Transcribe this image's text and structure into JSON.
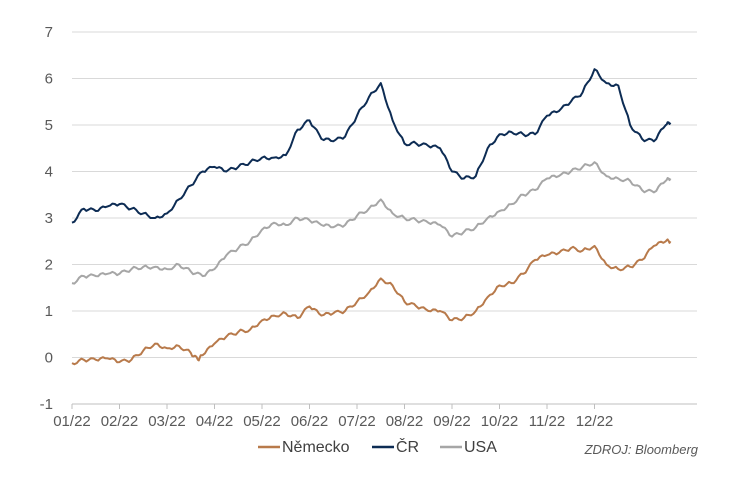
{
  "chart_data": {
    "type": "line",
    "title": "",
    "xlabel": "",
    "ylabel": "",
    "x_ticks": [
      "01/22",
      "02/22",
      "03/22",
      "04/22",
      "05/22",
      "06/22",
      "07/22",
      "08/22",
      "09/22",
      "10/22",
      "11/22",
      "12/22"
    ],
    "y_ticks": [
      -1,
      0,
      1,
      2,
      3,
      4,
      5,
      6,
      7
    ],
    "ylim": [
      -1,
      7
    ],
    "x_range_months": [
      0,
      12
    ],
    "grid": "horizontal",
    "legend_position": "bottom",
    "source": "ZDROJ: Bloomberg",
    "series": [
      {
        "name": "Německo",
        "color": "#b87a4b",
        "points": [
          [
            0,
            -0.12
          ],
          [
            0.25,
            -0.05
          ],
          [
            0.5,
            -0.05
          ],
          [
            0.75,
            -0.02
          ],
          [
            1,
            -0.1
          ],
          [
            1.25,
            -0.05
          ],
          [
            1.5,
            0.15
          ],
          [
            1.75,
            0.3
          ],
          [
            2,
            0.2
          ],
          [
            2.25,
            0.25
          ],
          [
            2.5,
            0.1
          ],
          [
            2.65,
            -0.05
          ],
          [
            2.75,
            0.05
          ],
          [
            3,
            0.3
          ],
          [
            3.25,
            0.45
          ],
          [
            3.5,
            0.55
          ],
          [
            3.75,
            0.6
          ],
          [
            4,
            0.8
          ],
          [
            4.25,
            0.9
          ],
          [
            4.5,
            0.95
          ],
          [
            4.75,
            0.85
          ],
          [
            5,
            1.1
          ],
          [
            5.25,
            0.9
          ],
          [
            5.5,
            0.95
          ],
          [
            5.75,
            1.0
          ],
          [
            6,
            1.2
          ],
          [
            6.25,
            1.4
          ],
          [
            6.5,
            1.7
          ],
          [
            6.75,
            1.55
          ],
          [
            7,
            1.2
          ],
          [
            7.25,
            1.1
          ],
          [
            7.5,
            1.0
          ],
          [
            7.75,
            1.0
          ],
          [
            8,
            0.8
          ],
          [
            8.25,
            0.85
          ],
          [
            8.5,
            1.0
          ],
          [
            8.75,
            1.3
          ],
          [
            9,
            1.55
          ],
          [
            9.25,
            1.6
          ],
          [
            9.5,
            1.8
          ],
          [
            9.75,
            2.1
          ],
          [
            10,
            2.2
          ],
          [
            10.25,
            2.25
          ],
          [
            10.5,
            2.35
          ],
          [
            10.75,
            2.3
          ],
          [
            11,
            2.4
          ],
          [
            11.25,
            2.0
          ],
          [
            11.5,
            1.9
          ],
          [
            11.75,
            1.95
          ],
          [
            12,
            2.1
          ],
          [
            12.25,
            2.4
          ],
          [
            12.5,
            2.5
          ],
          [
            12.6,
            2.5
          ]
        ]
      },
      {
        "name": "ČR",
        "color": "#0d2c54",
        "points": [
          [
            0,
            2.9
          ],
          [
            0.25,
            3.2
          ],
          [
            0.5,
            3.15
          ],
          [
            0.75,
            3.25
          ],
          [
            1,
            3.3
          ],
          [
            1.25,
            3.2
          ],
          [
            1.5,
            3.1
          ],
          [
            1.75,
            3.0
          ],
          [
            2,
            3.1
          ],
          [
            2.25,
            3.4
          ],
          [
            2.5,
            3.7
          ],
          [
            2.75,
            4.0
          ],
          [
            3,
            4.1
          ],
          [
            3.25,
            4.0
          ],
          [
            3.5,
            4.1
          ],
          [
            3.75,
            4.2
          ],
          [
            4,
            4.3
          ],
          [
            4.25,
            4.3
          ],
          [
            4.5,
            4.35
          ],
          [
            4.75,
            4.9
          ],
          [
            5,
            5.1
          ],
          [
            5.25,
            4.7
          ],
          [
            5.5,
            4.65
          ],
          [
            5.75,
            4.75
          ],
          [
            6,
            5.2
          ],
          [
            6.25,
            5.6
          ],
          [
            6.5,
            5.9
          ],
          [
            6.75,
            5.1
          ],
          [
            7,
            4.6
          ],
          [
            7.25,
            4.6
          ],
          [
            7.5,
            4.55
          ],
          [
            7.75,
            4.5
          ],
          [
            8,
            4.0
          ],
          [
            8.25,
            3.85
          ],
          [
            8.5,
            3.9
          ],
          [
            8.75,
            4.5
          ],
          [
            9,
            4.8
          ],
          [
            9.25,
            4.85
          ],
          [
            9.5,
            4.8
          ],
          [
            9.75,
            4.8
          ],
          [
            10,
            5.2
          ],
          [
            10.25,
            5.3
          ],
          [
            10.5,
            5.5
          ],
          [
            10.75,
            5.7
          ],
          [
            11,
            6.2
          ],
          [
            11.25,
            5.9
          ],
          [
            11.5,
            5.85
          ],
          [
            11.75,
            5.0
          ],
          [
            12,
            4.7
          ],
          [
            12.25,
            4.65
          ],
          [
            12.5,
            5.0
          ],
          [
            12.6,
            5.05
          ]
        ]
      },
      {
        "name": "USA",
        "color": "#a6a6a6",
        "points": [
          [
            0,
            1.6
          ],
          [
            0.25,
            1.75
          ],
          [
            0.5,
            1.75
          ],
          [
            0.75,
            1.8
          ],
          [
            1,
            1.8
          ],
          [
            1.25,
            1.9
          ],
          [
            1.5,
            1.95
          ],
          [
            1.75,
            1.95
          ],
          [
            2,
            1.9
          ],
          [
            2.25,
            2.0
          ],
          [
            2.5,
            1.85
          ],
          [
            2.75,
            1.75
          ],
          [
            3,
            1.9
          ],
          [
            3.25,
            2.2
          ],
          [
            3.5,
            2.35
          ],
          [
            3.75,
            2.5
          ],
          [
            4,
            2.75
          ],
          [
            4.25,
            2.9
          ],
          [
            4.5,
            2.85
          ],
          [
            4.75,
            3.0
          ],
          [
            5,
            2.95
          ],
          [
            5.25,
            2.85
          ],
          [
            5.5,
            2.8
          ],
          [
            5.75,
            2.85
          ],
          [
            6,
            3.05
          ],
          [
            6.25,
            3.2
          ],
          [
            6.5,
            3.4
          ],
          [
            6.75,
            3.1
          ],
          [
            7,
            3.0
          ],
          [
            7.25,
            2.95
          ],
          [
            7.5,
            2.9
          ],
          [
            7.75,
            2.85
          ],
          [
            8,
            2.6
          ],
          [
            8.25,
            2.7
          ],
          [
            8.5,
            2.8
          ],
          [
            8.75,
            3.0
          ],
          [
            9,
            3.15
          ],
          [
            9.25,
            3.3
          ],
          [
            9.5,
            3.5
          ],
          [
            9.75,
            3.6
          ],
          [
            10,
            3.85
          ],
          [
            10.25,
            3.9
          ],
          [
            10.5,
            4.0
          ],
          [
            10.75,
            4.1
          ],
          [
            11,
            4.2
          ],
          [
            11.25,
            3.9
          ],
          [
            11.5,
            3.85
          ],
          [
            11.75,
            3.8
          ],
          [
            12,
            3.6
          ],
          [
            12.25,
            3.55
          ],
          [
            12.5,
            3.8
          ],
          [
            12.6,
            3.85
          ]
        ]
      }
    ]
  }
}
